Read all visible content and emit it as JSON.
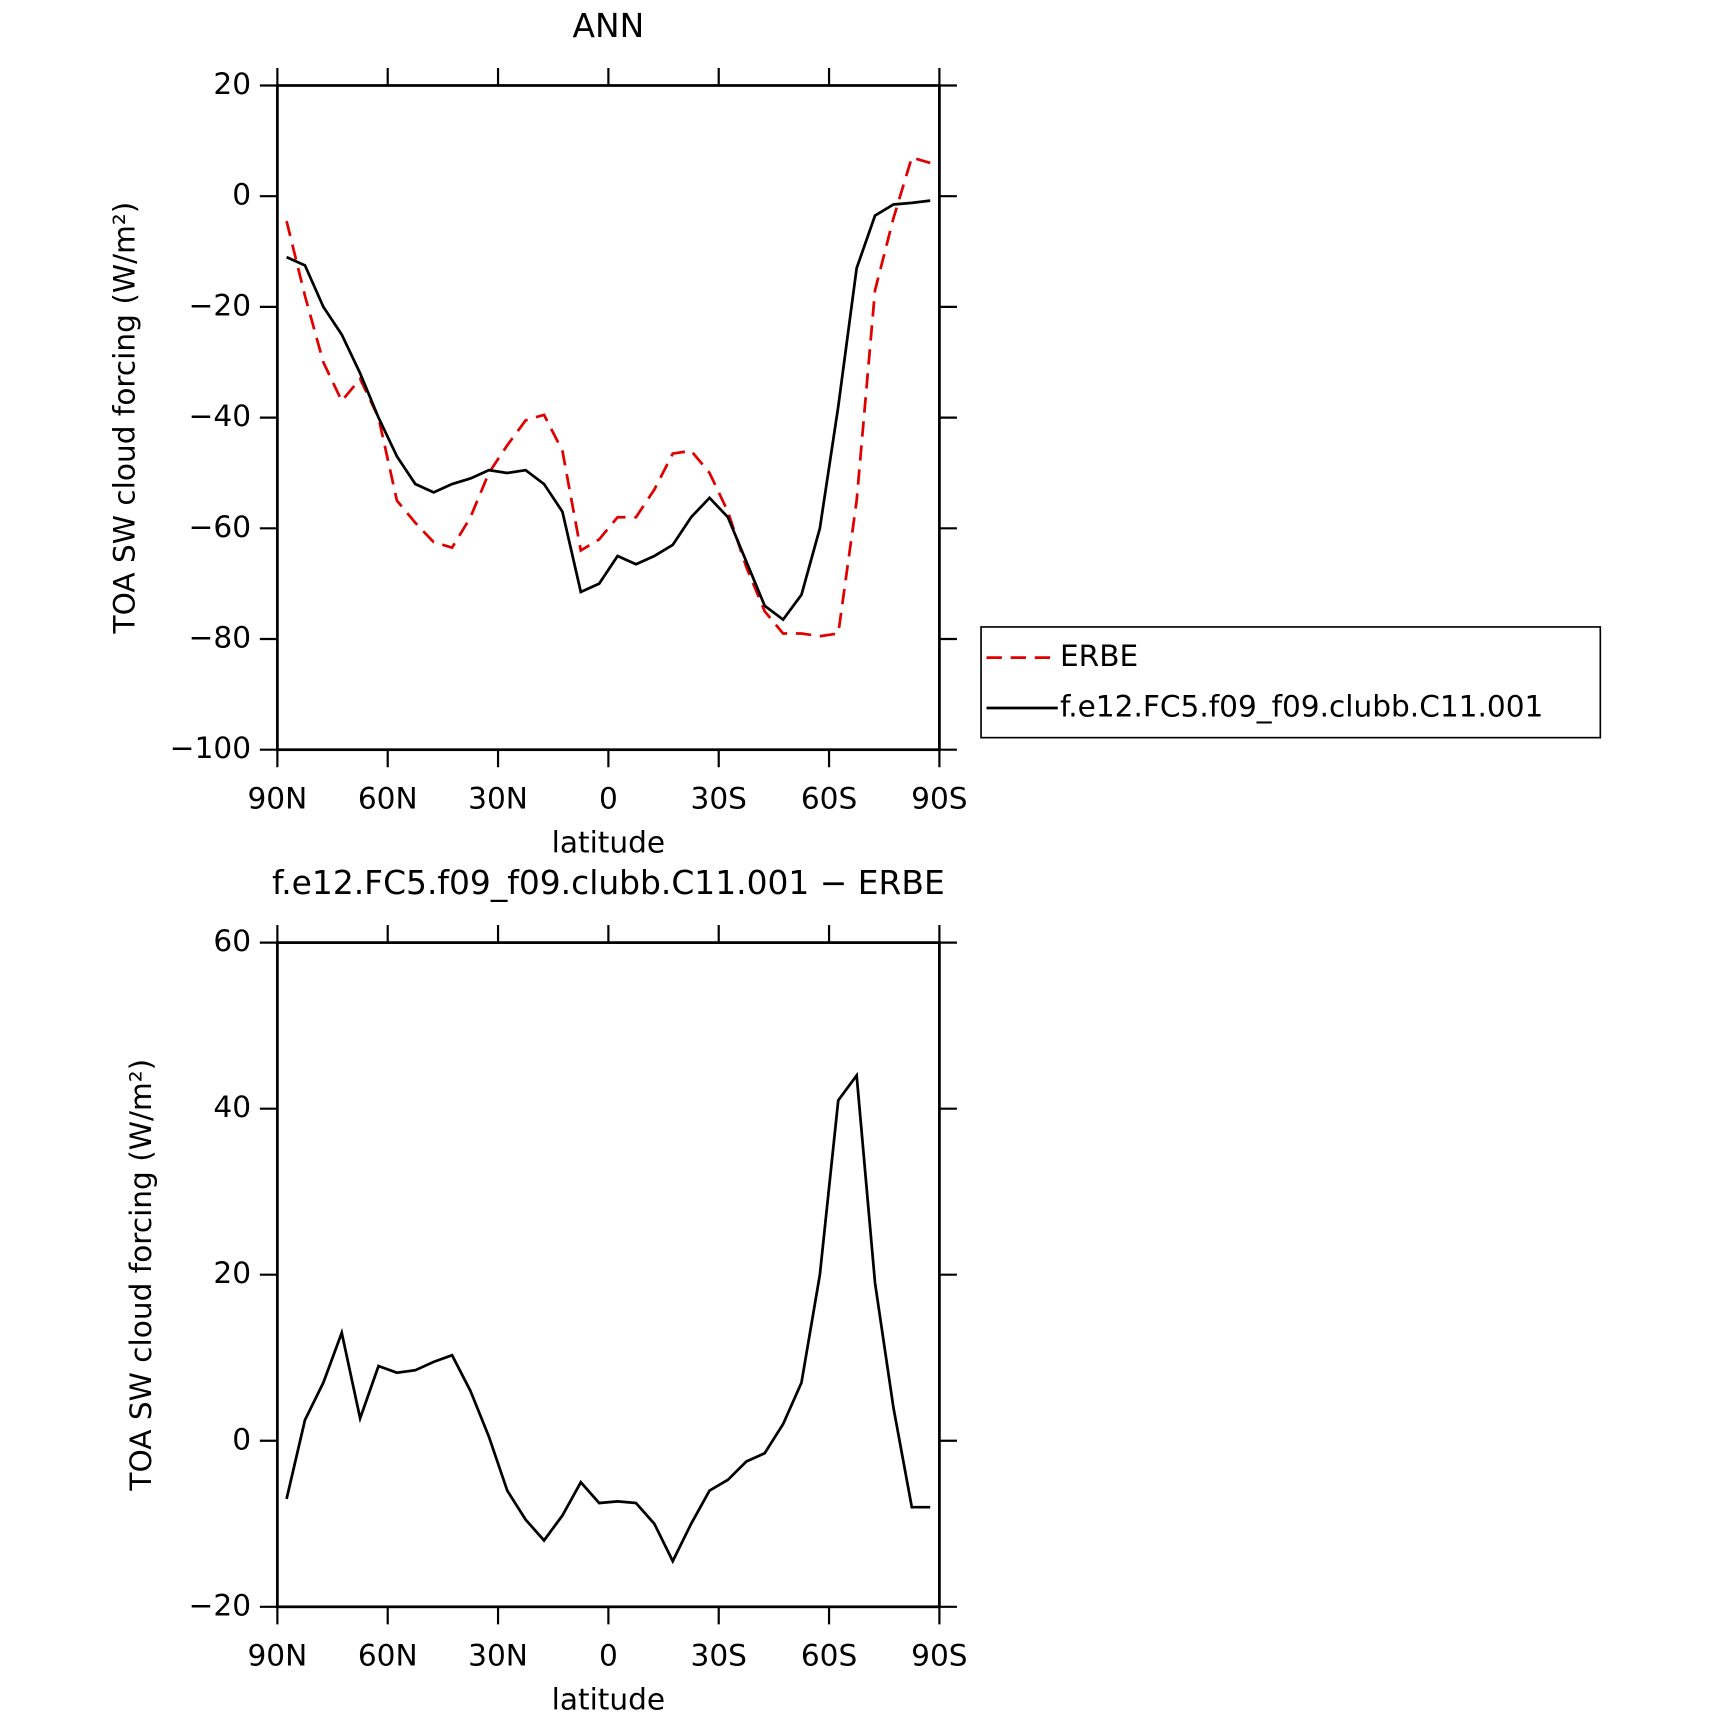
{
  "chart_data": [
    {
      "type": "line",
      "title": "ANN",
      "x_label": "latitude",
      "y_label": "TOA SW cloud forcing (W/m²)",
      "x": [
        87.5,
        82.5,
        77.5,
        72.5,
        67.5,
        62.5,
        57.5,
        52.5,
        47.5,
        42.5,
        37.5,
        32.5,
        27.5,
        22.5,
        17.5,
        12.5,
        7.5,
        2.5,
        -2.5,
        -7.5,
        -12.5,
        -17.5,
        -22.5,
        -27.5,
        -32.5,
        -37.5,
        -42.5,
        -47.5,
        -52.5,
        -57.5,
        -62.5,
        -67.5,
        -72.5,
        -77.5,
        -82.5,
        -87.5
      ],
      "series": [
        {
          "name": "ERBE",
          "color": "#e00000",
          "dash": true,
          "values": [
            -4.5,
            -18,
            -30,
            -37,
            -33,
            -40,
            -55,
            -59,
            -62.5,
            -63.5,
            -58,
            -50,
            -45,
            -40.5,
            -39.5,
            -46,
            -64,
            -62,
            -58,
            -58,
            -53,
            -46.5,
            -46,
            -50,
            -57,
            -67,
            -75,
            -79,
            -79,
            -79.5,
            -79,
            -55,
            -17,
            -4,
            7,
            6
          ]
        },
        {
          "name": "f.e12.FC5.f09_f09.clubb.C11.001",
          "color": "#000000",
          "dash": false,
          "values": [
            -11,
            -12.5,
            -20,
            -25,
            -32,
            -40,
            -47,
            -52,
            -53.5,
            -52,
            -51,
            -49.5,
            -50,
            -49.5,
            -52,
            -57,
            -71.5,
            -70,
            -65,
            -66.5,
            -65,
            -63,
            -58,
            -54.5,
            -58,
            -66,
            -74,
            -76.5,
            -72,
            -60,
            -38,
            -13,
            -3.5,
            -1.5,
            -1.2,
            -0.8
          ]
        }
      ],
      "xlim": [
        90,
        -90
      ],
      "xticks": [
        {
          "value": 90,
          "label": "90N"
        },
        {
          "value": 60,
          "label": "60N"
        },
        {
          "value": 30,
          "label": "30N"
        },
        0,
        {
          "value": -30,
          "label": "30S"
        },
        {
          "value": -60,
          "label": "60S"
        },
        {
          "value": -90,
          "label": "90S"
        }
      ],
      "ylim": [
        -100,
        20
      ],
      "yticks": [
        {
          "value": -100,
          "label": "−100"
        },
        {
          "value": -80,
          "label": "−80"
        },
        {
          "value": -60,
          "label": "−60"
        },
        {
          "value": -40,
          "label": "−40"
        },
        {
          "value": -20,
          "label": "−20"
        },
        0,
        20
      ],
      "legend": "right"
    },
    {
      "type": "line",
      "title": "f.e12.FC5.f09_f09.clubb.C11.001 − ERBE",
      "x_label": "latitude",
      "y_label": "TOA SW cloud forcing (W/m²)",
      "x": [
        87.5,
        82.5,
        77.5,
        72.5,
        67.5,
        62.5,
        57.5,
        52.5,
        47.5,
        42.5,
        37.5,
        32.5,
        27.5,
        22.5,
        17.5,
        12.5,
        7.5,
        2.5,
        -2.5,
        -7.5,
        -12.5,
        -17.5,
        -22.5,
        -27.5,
        -32.5,
        -37.5,
        -42.5,
        -47.5,
        -52.5,
        -57.5,
        -62.5,
        -67.5,
        -72.5,
        -77.5,
        -82.5,
        -87.5
      ],
      "color": "#000000",
      "values": [
        -7,
        2.5,
        7,
        13,
        2.7,
        9,
        8.2,
        8.5,
        9.5,
        10.3,
        6,
        0.5,
        -6,
        -9.5,
        -12,
        -9,
        -5,
        -7.5,
        -7.3,
        -7.5,
        -10,
        -14.5,
        -10,
        -6,
        -4.7,
        -2.5,
        -1.5,
        2,
        7,
        20,
        41,
        44,
        19,
        4,
        -8,
        -8
      ],
      "xlim": [
        90,
        -90
      ],
      "xticks": [
        {
          "value": 90,
          "label": "90N"
        },
        {
          "value": 60,
          "label": "60N"
        },
        {
          "value": 30,
          "label": "30N"
        },
        0,
        {
          "value": -30,
          "label": "30S"
        },
        {
          "value": -60,
          "label": "60S"
        },
        {
          "value": -90,
          "label": "90S"
        }
      ],
      "ylim": [
        -20,
        60
      ],
      "yticks": [
        {
          "value": -20,
          "label": "−20"
        },
        0,
        20,
        40,
        60
      ]
    }
  ]
}
